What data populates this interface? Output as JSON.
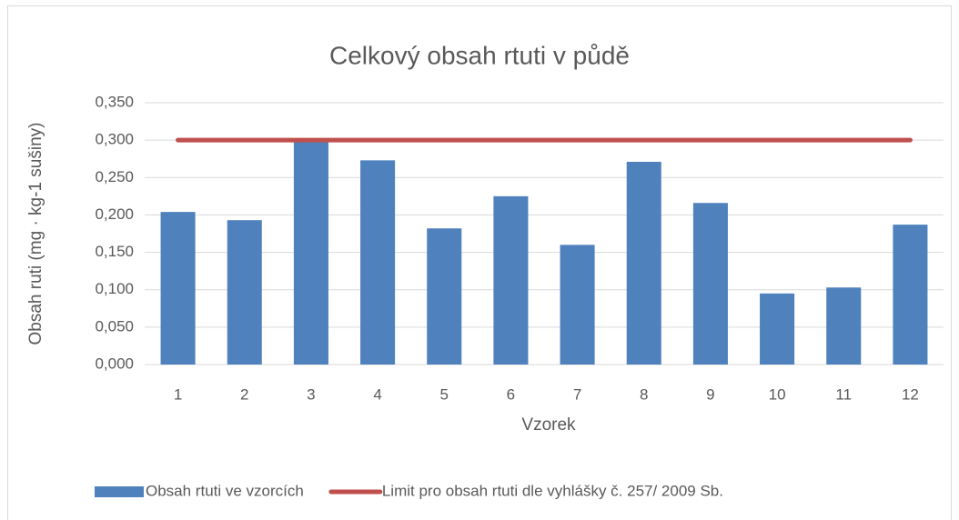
{
  "chart_data": {
    "type": "bar",
    "title": "Celkový obsah rtuti v půdě",
    "x_label": "Vzorek",
    "y_label": "Obsah ruti (mg · kg-1 sušiny)",
    "categories": [
      "1",
      "2",
      "3",
      "4",
      "5",
      "6",
      "7",
      "8",
      "9",
      "10",
      "11",
      "12"
    ],
    "series": [
      {
        "name": "Obsah rtuti ve vzorcích",
        "type": "bar",
        "color": "#4f81bd",
        "values": [
          0.204,
          0.193,
          0.298,
          0.273,
          0.182,
          0.225,
          0.16,
          0.271,
          0.216,
          0.095,
          0.103,
          0.187
        ]
      },
      {
        "name": "Limit pro obsah rtuti dle vyhlášky č. 257/ 2009 Sb.",
        "type": "line",
        "color": "#c0504d",
        "values": [
          0.3,
          0.3,
          0.3,
          0.3,
          0.3,
          0.3,
          0.3,
          0.3,
          0.3,
          0.3,
          0.3,
          0.3
        ]
      }
    ],
    "ylim": [
      0,
      0.35
    ],
    "yticks": [
      {
        "value": 0,
        "label": "0,000"
      },
      {
        "value": 0.05,
        "label": "0,050"
      },
      {
        "value": 0.1,
        "label": "0,100"
      },
      {
        "value": 0.15,
        "label": "0,150"
      },
      {
        "value": 0.2,
        "label": "0,200"
      },
      {
        "value": 0.25,
        "label": "0,250"
      },
      {
        "value": 0.3,
        "label": "0,300"
      },
      {
        "value": 0.35,
        "label": "0,350"
      }
    ],
    "grid": true,
    "legend": "bottom"
  }
}
